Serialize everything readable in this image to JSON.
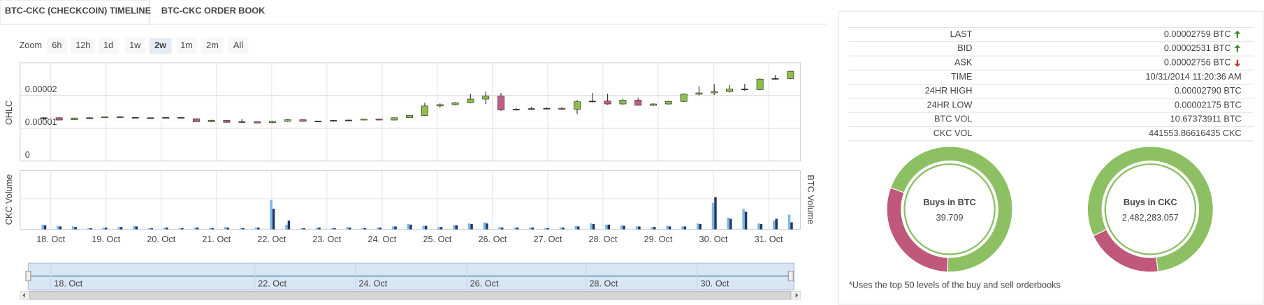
{
  "tabs": [
    "BTC-CKC (CHECKCOIN) TIMELINE",
    "BTC-CKC ORDER BOOK"
  ],
  "zoom": {
    "label": "Zoom",
    "buttons": [
      "6h",
      "12h",
      "1d",
      "1w",
      "2w",
      "1m",
      "2m",
      "All"
    ],
    "selected_index": 4
  },
  "chart_data": [
    {
      "type": "candlestick",
      "y_label": "OHLC",
      "up_color": "#8cc04b",
      "down_color": "#c25b86",
      "open": [
        1.3e-05,
        1.32e-05,
        1.26e-05,
        1.31e-05,
        1.32e-05,
        1.35e-05,
        1.33e-05,
        1.32e-05,
        1.32e-05,
        1.33e-05,
        1.29e-05,
        1.2e-05,
        1.24e-05,
        1.18e-05,
        1.2e-05,
        1.17e-05,
        1.21e-05,
        1.26e-05,
        1.21e-05,
        1.22e-05,
        1.24e-05,
        1.25e-05,
        1.28e-05,
        1.25e-05,
        1.32e-05,
        1.39e-05,
        1.68e-05,
        1.72e-05,
        1.78e-05,
        1.89e-05,
        1.98e-05,
        1.56e-05,
        1.58e-05,
        1.6e-05,
        1.61e-05,
        1.58e-05,
        1.81e-05,
        1.83e-05,
        1.74e-05,
        1.86e-05,
        1.7e-05,
        1.74e-05,
        1.82e-05,
        2.04e-05,
        2.08e-05,
        2.12e-05,
        2.2e-05,
        2.18e-05,
        2.5e-05,
        2.52e-05
      ],
      "high": [
        1.34e-05,
        1.33e-05,
        1.32e-05,
        1.34e-05,
        1.36e-05,
        1.37e-05,
        1.34e-05,
        1.33e-05,
        1.34e-05,
        1.34e-05,
        1.3e-05,
        1.26e-05,
        1.25e-05,
        1.28e-05,
        1.21e-05,
        1.23e-05,
        1.28e-05,
        1.27e-05,
        1.23e-05,
        1.25e-05,
        1.26e-05,
        1.29e-05,
        1.3e-05,
        1.33e-05,
        1.4e-05,
        1.78e-05,
        1.76e-05,
        1.8e-05,
        2.05e-05,
        2.12e-05,
        2.08e-05,
        1.62e-05,
        1.65e-05,
        1.63e-05,
        1.64e-05,
        1.86e-05,
        2.08e-05,
        2.05e-05,
        1.9e-05,
        1.93e-05,
        1.76e-05,
        1.84e-05,
        2.06e-05,
        2.28e-05,
        2.35e-05,
        2.32e-05,
        2.36e-05,
        2.53e-05,
        2.62e-05,
        2.76e-05
      ],
      "low": [
        1.26e-05,
        1.24e-05,
        1.26e-05,
        1.3e-05,
        1.31e-05,
        1.32e-05,
        1.31e-05,
        1.31e-05,
        1.31e-05,
        1.3e-05,
        1.19e-05,
        1.18e-05,
        1.17e-05,
        1.16e-05,
        1.15e-05,
        1.15e-05,
        1.19e-05,
        1.2e-05,
        1.19e-05,
        1.2e-05,
        1.21e-05,
        1.24e-05,
        1.24e-05,
        1.24e-05,
        1.31e-05,
        1.37e-05,
        1.63e-05,
        1.7e-05,
        1.76e-05,
        1.74e-05,
        1.53e-05,
        1.54e-05,
        1.56e-05,
        1.57e-05,
        1.56e-05,
        1.43e-05,
        1.79e-05,
        1.72e-05,
        1.72e-05,
        1.69e-05,
        1.68e-05,
        1.72e-05,
        1.8e-05,
        2e-05,
        2.02e-05,
        2.09e-05,
        2.14e-05,
        2.16e-05,
        2.48e-05,
        2.5e-05
      ],
      "close": [
        1.32e-05,
        1.25e-05,
        1.31e-05,
        1.32e-05,
        1.35e-05,
        1.33e-05,
        1.32e-05,
        1.32e-05,
        1.33e-05,
        1.31e-05,
        1.2e-05,
        1.24e-05,
        1.18e-05,
        1.2e-05,
        1.16e-05,
        1.21e-05,
        1.26e-05,
        1.21e-05,
        1.22e-05,
        1.24e-05,
        1.25e-05,
        1.28e-05,
        1.25e-05,
        1.32e-05,
        1.39e-05,
        1.68e-05,
        1.72e-05,
        1.78e-05,
        1.89e-05,
        1.98e-05,
        1.56e-05,
        1.58e-05,
        1.6e-05,
        1.61e-05,
        1.58e-05,
        1.81e-05,
        1.83e-05,
        1.74e-05,
        1.86e-05,
        1.7e-05,
        1.74e-05,
        1.82e-05,
        2.04e-05,
        2.08e-05,
        2.12e-05,
        2.2e-05,
        2.18e-05,
        2.5e-05,
        2.52e-05,
        2.74e-05
      ],
      "ylim": [
        0,
        3e-05
      ],
      "yticks": [
        0,
        1e-05,
        2e-05
      ],
      "grid": true,
      "x_labels": [
        "18. Oct",
        "19. Oct",
        "20. Oct",
        "21. Oct",
        "22. Oct",
        "23. Oct",
        "24. Oct",
        "25. Oct",
        "26. Oct",
        "27. Oct",
        "28. Oct",
        "29. Oct",
        "30. Oct",
        "31. Oct"
      ]
    },
    {
      "type": "bar",
      "y_label": "CKC Volume",
      "y2_label": "BTC Volume",
      "ylim": [
        0,
        100
      ],
      "y2lim": [
        0,
        100
      ],
      "series": [
        {
          "color": "#7cb5ec",
          "values": [
            8,
            6,
            5,
            2,
            3,
            4,
            6,
            2,
            3,
            2,
            3,
            2,
            4,
            2,
            3,
            50,
            8,
            2,
            3,
            2,
            4,
            2,
            3,
            5,
            9,
            6,
            4,
            7,
            10,
            12,
            4,
            3,
            3,
            2,
            3,
            6,
            10,
            8,
            7,
            5,
            4,
            6,
            5,
            10,
            45,
            20,
            35,
            10,
            15,
            25
          ]
        },
        {
          "color": "#1f3a5f",
          "axis": "y2",
          "values": [
            7,
            5,
            4,
            2,
            3,
            4,
            5,
            2,
            3,
            2,
            3,
            2,
            3,
            2,
            3,
            35,
            15,
            2,
            3,
            2,
            3,
            2,
            3,
            5,
            8,
            6,
            4,
            7,
            9,
            10,
            3,
            3,
            3,
            2,
            3,
            5,
            9,
            8,
            6,
            5,
            4,
            5,
            5,
            9,
            55,
            18,
            30,
            9,
            18,
            12
          ]
        }
      ]
    }
  ],
  "navigator": {
    "labels": [
      "18. Oct",
      "22. Oct",
      "24. Oct",
      "26. Oct",
      "28. Oct",
      "30. Oct"
    ]
  },
  "stats": {
    "rows": [
      {
        "label": "LAST",
        "value": "0.00002759 BTC",
        "trend": "up"
      },
      {
        "label": "BID",
        "value": "0.00002531 BTC",
        "trend": "up"
      },
      {
        "label": "ASK",
        "value": "0.00002756 BTC",
        "trend": "down"
      },
      {
        "label": "TIME",
        "value": "10/31/2014 11:20:36 AM"
      },
      {
        "label": "24HR HIGH",
        "value": "0.00002790 BTC"
      },
      {
        "label": "24HR LOW",
        "value": "0.00002175 BTC"
      },
      {
        "label": "BTC VOL",
        "value": "10.67373911 BTC"
      },
      {
        "label": "CKC VOL",
        "value": "441553.86616435 CKC"
      }
    ]
  },
  "donuts": [
    {
      "title": "Buys in BTC",
      "value_label": "39.709",
      "segments": [
        {
          "color": "#8cc063",
          "value": 70
        },
        {
          "color": "#c0587a",
          "value": 30
        }
      ]
    },
    {
      "title": "Buys in CKC",
      "value_label": "2,482,283.057",
      "segments": [
        {
          "color": "#8cc063",
          "value": 80
        },
        {
          "color": "#c0587a",
          "value": 20
        }
      ]
    }
  ],
  "footnote": "*Uses the top 50 levels of the buy and sell orderbooks"
}
